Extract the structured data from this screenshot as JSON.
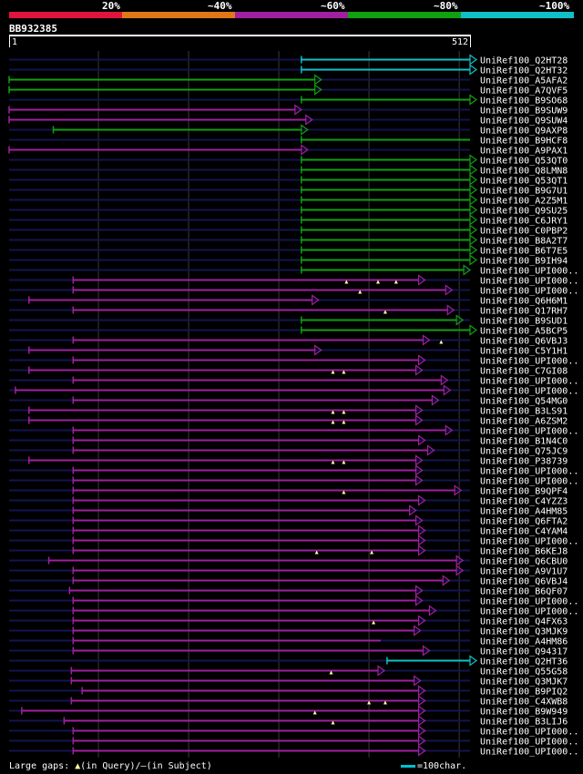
{
  "legend": {
    "labels": [
      "20%",
      "~40%",
      "~60%",
      "~80%",
      "~100%"
    ],
    "colors": [
      "#e0143c",
      "#e07818",
      "#a020a0",
      "#10a010",
      "#10c0c8"
    ]
  },
  "query": {
    "name": "BB932385",
    "start": "1",
    "end": "512"
  },
  "footer": {
    "gaps_prefix": "Large gaps:",
    "gaps_query": "(in Query)/",
    "gaps_subject": "–(in Subject)",
    "scale_label": "=100char."
  },
  "chart_data": {
    "type": "alignment",
    "title": "BB932385",
    "query_length": 512,
    "x_range": [
      1,
      512
    ],
    "grid_positions": [
      100,
      200,
      300,
      400,
      500
    ],
    "identity_bins": [
      "20%",
      "~40%",
      "~60%",
      "~80%",
      "~100%"
    ],
    "hits": [
      {
        "id": "UniRef100_Q2HT28",
        "start": 325,
        "end": 512,
        "identity": "~100%",
        "arrow": "end"
      },
      {
        "id": "UniRef100_Q2HT32",
        "start": 325,
        "end": 512,
        "identity": "~100%",
        "arrow": "end"
      },
      {
        "id": "UniRef100_A5AFA2",
        "start": 1,
        "end": 340,
        "identity": "~80%",
        "arrow": "end"
      },
      {
        "id": "UniRef100_A7QVF5",
        "start": 1,
        "end": 340,
        "identity": "~80%",
        "arrow": "end"
      },
      {
        "id": "UniRef100_B9SO68",
        "start": 325,
        "end": 512,
        "identity": "~80%",
        "arrow": "end"
      },
      {
        "id": "UniRef100_B9SUW9",
        "start": 1,
        "end": 318,
        "identity": "~60%",
        "arrow": "end"
      },
      {
        "id": "UniRef100_Q9SUW4",
        "start": 1,
        "end": 330,
        "identity": "~60%",
        "arrow": "end"
      },
      {
        "id": "UniRef100_Q9AXP8",
        "start": 50,
        "end": 325,
        "identity": "~80%",
        "arrow": "end"
      },
      {
        "id": "UniRef100_B9HCF8",
        "start": 325,
        "end": 512,
        "identity": "~80%",
        "arrow": "none"
      },
      {
        "id": "UniRef100_A9PAX1",
        "start": 1,
        "end": 325,
        "identity": "~60%",
        "arrow": "end"
      },
      {
        "id": "UniRef100_Q53QT0",
        "start": 325,
        "end": 512,
        "identity": "~80%",
        "arrow": "end"
      },
      {
        "id": "UniRef100_Q8LMN8",
        "start": 325,
        "end": 512,
        "identity": "~80%",
        "arrow": "end"
      },
      {
        "id": "UniRef100_Q53QT1",
        "start": 325,
        "end": 512,
        "identity": "~80%",
        "arrow": "end"
      },
      {
        "id": "UniRef100_B9G7U1",
        "start": 325,
        "end": 512,
        "identity": "~80%",
        "arrow": "end"
      },
      {
        "id": "UniRef100_A2Z5M1",
        "start": 325,
        "end": 512,
        "identity": "~80%",
        "arrow": "end"
      },
      {
        "id": "UniRef100_Q9SU25",
        "start": 325,
        "end": 512,
        "identity": "~80%",
        "arrow": "end"
      },
      {
        "id": "UniRef100_C6JRY1",
        "start": 325,
        "end": 512,
        "identity": "~80%",
        "arrow": "end"
      },
      {
        "id": "UniRef100_C0PBP2",
        "start": 325,
        "end": 512,
        "identity": "~80%",
        "arrow": "end"
      },
      {
        "id": "UniRef100_B8A2T7",
        "start": 325,
        "end": 512,
        "identity": "~80%",
        "arrow": "end"
      },
      {
        "id": "UniRef100_B6T7E5",
        "start": 325,
        "end": 512,
        "identity": "~80%",
        "arrow": "end"
      },
      {
        "id": "UniRef100_B9IH94",
        "start": 325,
        "end": 512,
        "identity": "~80%",
        "arrow": "end"
      },
      {
        "id": "UniRef100_UPI000..",
        "start": 325,
        "end": 505,
        "identity": "~80%",
        "arrow": "end"
      },
      {
        "id": "UniRef100_UPI000..",
        "start": 72,
        "end": 455,
        "identity": "~60%",
        "arrow": "end",
        "gaps": [
          375,
          410,
          430
        ]
      },
      {
        "id": "UniRef100_UPI000..",
        "start": 72,
        "end": 485,
        "identity": "~60%",
        "arrow": "end",
        "gaps": [
          390
        ]
      },
      {
        "id": "UniRef100_Q6H6M1",
        "start": 23,
        "end": 337,
        "identity": "~60%",
        "arrow": "end"
      },
      {
        "id": "UniRef100_Q17RH7",
        "start": 72,
        "end": 487,
        "identity": "~60%",
        "arrow": "end",
        "gaps": [
          418
        ]
      },
      {
        "id": "UniRef100_B9SUD1",
        "start": 325,
        "end": 497,
        "identity": "~80%",
        "arrow": "end"
      },
      {
        "id": "UniRef100_A5BCP5",
        "start": 325,
        "end": 512,
        "identity": "~80%",
        "arrow": "end"
      },
      {
        "id": "UniRef100_Q6VBJ3",
        "start": 72,
        "end": 460,
        "identity": "~60%",
        "arrow": "end",
        "gaps": [
          480
        ]
      },
      {
        "id": "UniRef100_C5Y1H1",
        "start": 23,
        "end": 340,
        "identity": "~60%",
        "arrow": "end"
      },
      {
        "id": "UniRef100_UPI000..",
        "start": 72,
        "end": 455,
        "identity": "~60%",
        "arrow": "end"
      },
      {
        "id": "UniRef100_C7GI08",
        "start": 23,
        "end": 452,
        "identity": "~60%",
        "arrow": "end",
        "gaps": [
          360,
          372
        ]
      },
      {
        "id": "UniRef100_UPI000..",
        "start": 72,
        "end": 480,
        "identity": "~60%",
        "arrow": "end"
      },
      {
        "id": "UniRef100_UPI000..",
        "start": 8,
        "end": 483,
        "identity": "~60%",
        "arrow": "end"
      },
      {
        "id": "UniRef100_Q54MG0",
        "start": 72,
        "end": 470,
        "identity": "~60%",
        "arrow": "end"
      },
      {
        "id": "UniRef100_B3LS91",
        "start": 23,
        "end": 452,
        "identity": "~60%",
        "arrow": "end",
        "gaps": [
          360,
          372
        ]
      },
      {
        "id": "UniRef100_A6ZSM2",
        "start": 23,
        "end": 452,
        "identity": "~60%",
        "arrow": "end",
        "gaps": [
          360,
          372
        ]
      },
      {
        "id": "UniRef100_UPI000..",
        "start": 72,
        "end": 485,
        "identity": "~60%",
        "arrow": "end"
      },
      {
        "id": "UniRef100_B1N4C0",
        "start": 72,
        "end": 455,
        "identity": "~60%",
        "arrow": "end"
      },
      {
        "id": "UniRef100_Q75JC9",
        "start": 72,
        "end": 465,
        "identity": "~60%",
        "arrow": "end"
      },
      {
        "id": "UniRef100_P38739",
        "start": 23,
        "end": 452,
        "identity": "~60%",
        "arrow": "end",
        "gaps": [
          360,
          372
        ]
      },
      {
        "id": "UniRef100_UPI000..",
        "start": 72,
        "end": 452,
        "identity": "~60%",
        "arrow": "end"
      },
      {
        "id": "UniRef100_UPI000..",
        "start": 72,
        "end": 452,
        "identity": "~60%",
        "arrow": "end"
      },
      {
        "id": "UniRef100_B9QPF4",
        "start": 72,
        "end": 495,
        "identity": "~60%",
        "arrow": "end",
        "gaps": [
          372
        ]
      },
      {
        "id": "UniRef100_C4YZZ3",
        "start": 72,
        "end": 455,
        "identity": "~60%",
        "arrow": "end"
      },
      {
        "id": "UniRef100_A4HM85",
        "start": 72,
        "end": 445,
        "identity": "~60%",
        "arrow": "end"
      },
      {
        "id": "UniRef100_Q6FTA2",
        "start": 72,
        "end": 452,
        "identity": "~60%",
        "arrow": "end"
      },
      {
        "id": "UniRef100_C4YAM4",
        "start": 72,
        "end": 455,
        "identity": "~60%",
        "arrow": "end"
      },
      {
        "id": "UniRef100_UPI000..",
        "start": 72,
        "end": 455,
        "identity": "~60%",
        "arrow": "end"
      },
      {
        "id": "UniRef100_B6KEJ8",
        "start": 72,
        "end": 455,
        "identity": "~60%",
        "arrow": "end",
        "gaps": [
          342,
          403
        ]
      },
      {
        "id": "UniRef100_Q6CBU0",
        "start": 45,
        "end": 497,
        "identity": "~60%",
        "arrow": "end"
      },
      {
        "id": "UniRef100_A9V1U7",
        "start": 72,
        "end": 497,
        "identity": "~60%",
        "arrow": "end"
      },
      {
        "id": "UniRef100_Q6VBJ4",
        "start": 72,
        "end": 482,
        "identity": "~60%",
        "arrow": "end"
      },
      {
        "id": "UniRef100_B6QF07",
        "start": 68,
        "end": 452,
        "identity": "~60%",
        "arrow": "end"
      },
      {
        "id": "UniRef100_UPI000..",
        "start": 72,
        "end": 452,
        "identity": "~60%",
        "arrow": "end"
      },
      {
        "id": "UniRef100_UPI000..",
        "start": 72,
        "end": 467,
        "identity": "~60%",
        "arrow": "end"
      },
      {
        "id": "UniRef100_Q4FX63",
        "start": 72,
        "end": 455,
        "identity": "~60%",
        "arrow": "end",
        "gaps": [
          405
        ]
      },
      {
        "id": "UniRef100_Q3MJK9",
        "start": 72,
        "end": 450,
        "identity": "~60%",
        "arrow": "end"
      },
      {
        "id": "UniRef100_A4HM86",
        "start": 72,
        "end": 413,
        "identity": "~60%",
        "arrow": "none"
      },
      {
        "id": "UniRef100_Q94317",
        "start": 72,
        "end": 460,
        "identity": "~60%",
        "arrow": "end"
      },
      {
        "id": "UniRef100_Q2HT36",
        "start": 420,
        "end": 512,
        "identity": "~100%",
        "arrow": "end"
      },
      {
        "id": "UniRef100_Q55G58",
        "start": 70,
        "end": 410,
        "identity": "~60%",
        "arrow": "end",
        "gaps": [
          358
        ]
      },
      {
        "id": "UniRef100_Q3MJK7",
        "start": 70,
        "end": 450,
        "identity": "~60%",
        "arrow": "end"
      },
      {
        "id": "UniRef100_B9PIQ2",
        "start": 82,
        "end": 455,
        "identity": "~60%",
        "arrow": "end"
      },
      {
        "id": "UniRef100_C4XWB8",
        "start": 70,
        "end": 455,
        "identity": "~60%",
        "arrow": "end",
        "gaps": [
          400,
          418
        ]
      },
      {
        "id": "UniRef100_B9W949",
        "start": 15,
        "end": 455,
        "identity": "~60%",
        "arrow": "end",
        "gaps": [
          340
        ]
      },
      {
        "id": "UniRef100_B3LIJ6",
        "start": 62,
        "end": 455,
        "identity": "~60%",
        "arrow": "end",
        "gaps": [
          360
        ]
      },
      {
        "id": "UniRef100_UPI000..",
        "start": 72,
        "end": 455,
        "identity": "~60%",
        "arrow": "end"
      },
      {
        "id": "UniRef100_UPI000..",
        "start": 72,
        "end": 455,
        "identity": "~60%",
        "arrow": "end"
      },
      {
        "id": "UniRef100_UPI000..",
        "start": 72,
        "end": 455,
        "identity": "~60%",
        "arrow": "end"
      }
    ]
  }
}
